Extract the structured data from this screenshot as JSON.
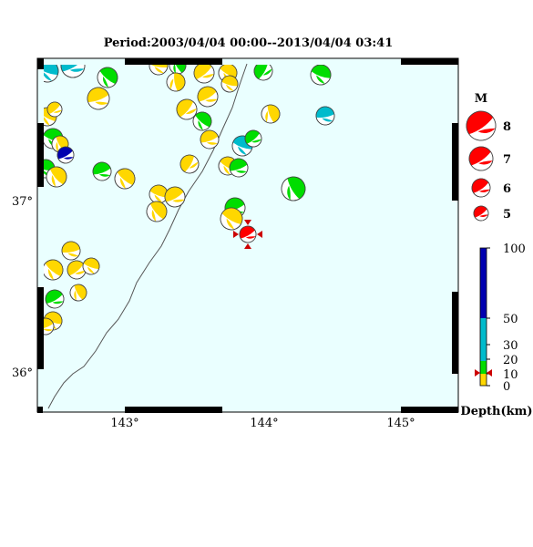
{
  "title": "Period:2003/04/04 00:00--2013/04/04 03:41",
  "map": {
    "lon_labels": [
      "143°",
      "144°",
      "145°"
    ],
    "lat_labels": [
      "37°",
      "36°"
    ],
    "ocean_color": "#eaffff",
    "coast_color": "#555555"
  },
  "legend": {
    "mag_title": "M",
    "mag_labels": [
      "8",
      "7",
      "6",
      "5"
    ],
    "depth_labels": [
      "100",
      "50",
      "30",
      "20",
      "10",
      "0"
    ],
    "depth_title": "Depth(km)",
    "depth_colors": {
      "0-10": "#ffd700",
      "10-20": "#00dd00",
      "20-50": "#00bbcc",
      "50-100": "#0000b0"
    }
  },
  "events": {
    "highlight": {
      "name": "latest-event",
      "color": "#ff0000",
      "marker_color": "#cc0000"
    },
    "colors": {
      "shallow": "#ffd700",
      "mid": "#00dd00",
      "deep": "#00bbcc",
      "very_deep": "#0000b0"
    }
  }
}
